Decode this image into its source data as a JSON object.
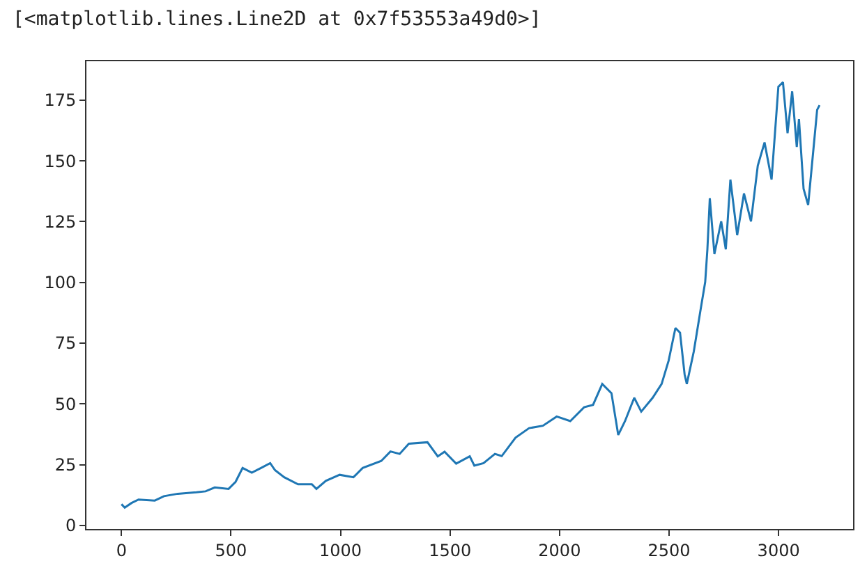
{
  "chart_data": {
    "type": "line",
    "annotations": [
      "[<matplotlib.lines.Line2D at 0x7f53553a49d0>]"
    ],
    "x": [
      0,
      15,
      46,
      78,
      152,
      194,
      257,
      342,
      384,
      426,
      489,
      521,
      553,
      595,
      637,
      679,
      701,
      743,
      806,
      869,
      890,
      933,
      996,
      1059,
      1101,
      1186,
      1228,
      1270,
      1312,
      1397,
      1444,
      1475,
      1528,
      1590,
      1611,
      1653,
      1705,
      1736,
      1799,
      1861,
      1924,
      1987,
      2049,
      2112,
      2153,
      2195,
      2237,
      2268,
      2299,
      2341,
      2373,
      2425,
      2466,
      2498,
      2529,
      2550,
      2571,
      2581,
      2613,
      2644,
      2665,
      2675,
      2686,
      2707,
      2738,
      2759,
      2780,
      2811,
      2842,
      2874,
      2905,
      2936,
      2968,
      2999,
      3020,
      3041,
      3062,
      3083,
      3093,
      3114,
      3135,
      3156,
      3176,
      3187
    ],
    "series": [
      {
        "color": "#1f77b4",
        "values": [
          8.7,
          7.3,
          9.2,
          10.6,
          10.2,
          12,
          13,
          13.6,
          14,
          15.6,
          15,
          17.9,
          23.6,
          21.7,
          23.6,
          25.6,
          22.7,
          19.8,
          16.9,
          16.9,
          15,
          18.3,
          20.8,
          19.8,
          23.6,
          26.5,
          30.4,
          29.4,
          33.6,
          34.2,
          28.4,
          30.3,
          25.4,
          28.4,
          24.6,
          25.6,
          29.4,
          28.5,
          36.1,
          40,
          41,
          44.8,
          42.9,
          48.6,
          49.6,
          58.2,
          54.4,
          37.2,
          42.9,
          52.5,
          46.8,
          52.5,
          58.2,
          67.8,
          81.2,
          79.3,
          62.1,
          58.2,
          71.6,
          88.8,
          100.2,
          113.6,
          134.6,
          111.7,
          125.1,
          113.6,
          142.3,
          119.4,
          136.6,
          125.1,
          148,
          157.6,
          142.3,
          180.5,
          182.4,
          161.4,
          178.6,
          155.7,
          167.2,
          138.5,
          131.8,
          151.9,
          171,
          172.9
        ]
      }
    ],
    "xlim": [
      -160,
      3340
    ],
    "xticks": [
      0,
      500,
      1000,
      1500,
      2000,
      2500,
      3000
    ],
    "ylim": [
      -1.5,
      191
    ],
    "yticks": [
      0,
      25,
      50,
      75,
      100,
      125,
      150,
      175
    ],
    "grid": false,
    "marker": "none",
    "line_style": "solid"
  }
}
